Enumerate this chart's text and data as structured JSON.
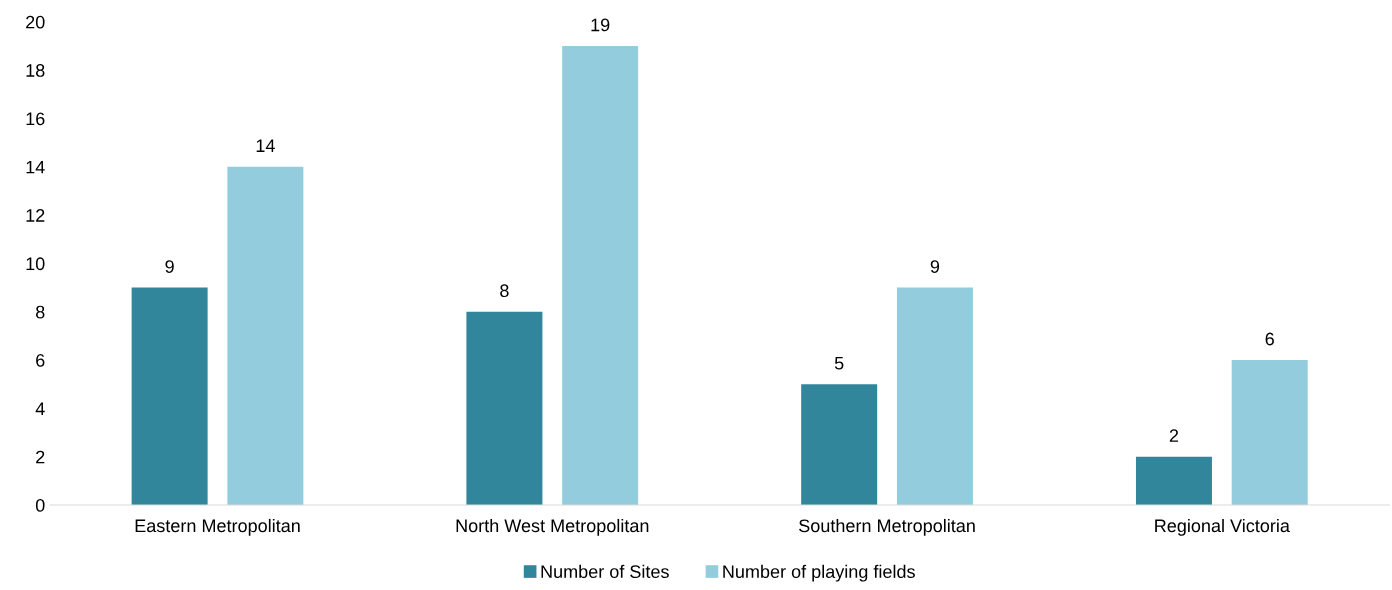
{
  "chart_data": {
    "type": "bar",
    "categories": [
      "Eastern Metropolitan",
      "North West Metropolitan",
      "Southern Metropolitan",
      "Regional Victoria"
    ],
    "series": [
      {
        "name": "Number of Sites",
        "color": "#31869b",
        "values": [
          9,
          8,
          5,
          2
        ]
      },
      {
        "name": "Number of playing fields",
        "color": "#93cddd",
        "values": [
          14,
          19,
          9,
          6
        ]
      }
    ],
    "ylim": [
      0,
      20
    ],
    "yticks": [
      0,
      2,
      4,
      6,
      8,
      10,
      12,
      14,
      16,
      18,
      20
    ],
    "data_labels": true,
    "grid": false,
    "legend": "bottom"
  }
}
